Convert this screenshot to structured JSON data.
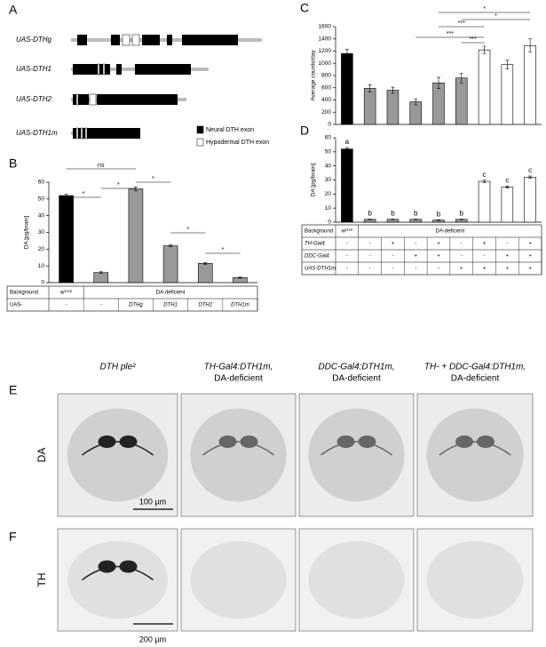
{
  "panel_a": {
    "label": "A",
    "constructs": [
      "UAS-DTHg",
      "UAS-DTH1",
      "UAS-DTH2",
      "UAS-DTH1m"
    ],
    "legend": [
      "Neural DTH exon",
      "Hypodermal DTH exon"
    ]
  },
  "chart_data": [
    {
      "type": "bar",
      "label": "B",
      "ylabel": "DA [pg/brain]",
      "ylim": [
        0,
        60
      ],
      "yticks": [
        0,
        10,
        20,
        30,
        40,
        50,
        60
      ],
      "values": [
        52,
        6,
        56,
        22,
        11.5,
        3
      ],
      "errors": [
        0.8,
        0.5,
        1.2,
        0.6,
        0.5,
        0.3
      ],
      "colors": [
        "#000000",
        "#999999",
        "#999999",
        "#999999",
        "#999999",
        "#999999"
      ],
      "annotations": [
        "ns",
        "*",
        "*",
        "*",
        "*",
        "*"
      ],
      "table": [
        [
          "Background",
          "w¹¹¹⁸",
          "DA-deficient"
        ],
        [
          "UAS-",
          "-",
          "-",
          "DTHg",
          "DTH1",
          "DTH2",
          "DTH1m"
        ]
      ]
    },
    {
      "type": "bar",
      "label": "C",
      "ylabel": "Average counts/day",
      "ylim": [
        0,
        1600
      ],
      "yticks": [
        0,
        200,
        400,
        600,
        800,
        1000,
        1200,
        1400,
        1600
      ],
      "values": [
        1160,
        590,
        560,
        370,
        680,
        760,
        1220,
        980,
        1290
      ],
      "errors": [
        70,
        60,
        50,
        50,
        90,
        80,
        60,
        70,
        110
      ],
      "colors": [
        "#000000",
        "#999999",
        "#999999",
        "#999999",
        "#999999",
        "#999999",
        "#ffffff",
        "#ffffff",
        "#ffffff"
      ],
      "annotations": [
        "*",
        "*",
        "***",
        "***",
        "***"
      ]
    },
    {
      "type": "bar",
      "label": "D",
      "ylabel": "DA [pg/brain]",
      "ylim": [
        0,
        60
      ],
      "yticks": [
        0,
        10,
        20,
        30,
        40,
        50,
        60
      ],
      "values": [
        52,
        2,
        2,
        2,
        1.5,
        2,
        29,
        25,
        32
      ],
      "errors": [
        1,
        0.2,
        0.2,
        0.2,
        0.2,
        0.2,
        0.8,
        0.8,
        0.8
      ],
      "colors": [
        "#000000",
        "#999999",
        "#999999",
        "#999999",
        "#999999",
        "#999999",
        "#ffffff",
        "#ffffff",
        "#ffffff"
      ],
      "letters": [
        "a",
        "b",
        "b",
        "b",
        "b",
        "b",
        "c",
        "c",
        "c"
      ],
      "table": [
        [
          "Background",
          "w¹¹¹⁸",
          "DA-deficient"
        ],
        [
          "TH-Gal4",
          "-",
          "-",
          "+",
          "-",
          "+",
          "-",
          "+",
          "-",
          "+"
        ],
        [
          "DDC-Gal4",
          "-",
          "-",
          "-",
          "+",
          "+",
          "-",
          "-",
          "+",
          "+"
        ],
        [
          "UAS-DTH1m",
          "-",
          "-",
          "-",
          "-",
          "-",
          "+",
          "+",
          "+",
          "+"
        ]
      ]
    }
  ],
  "panel_e": {
    "label": "E",
    "row_label": "DA",
    "columns": [
      [
        "DTH ple²"
      ],
      [
        "TH-Gal4:DTH1m,",
        "DA-deficient"
      ],
      [
        "DDC-Gal4:DTH1m,",
        "DA-deficient"
      ],
      [
        "TH- + DDC-Gal4:DTH1m,",
        "DA-deficient"
      ]
    ],
    "scale_bar": "100 µm"
  },
  "panel_f": {
    "label": "F",
    "row_label": "TH",
    "scale_bar": "200 µm"
  }
}
